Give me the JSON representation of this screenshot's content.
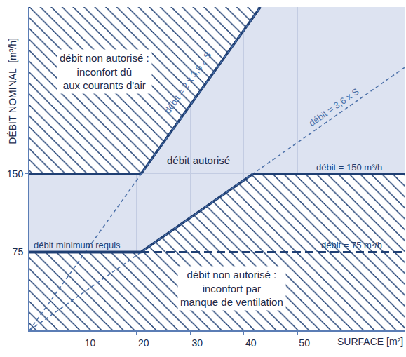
{
  "chart_data": {
    "type": "line",
    "x_label": "SURFACE [m²]",
    "y_label": "DÉBIT NOMINAL  [m³/h]",
    "xlim": [
      0,
      70
    ],
    "ylim": [
      0,
      310
    ],
    "xticks": [
      10,
      20,
      30,
      40,
      50
    ],
    "yticks": [
      75,
      150
    ],
    "grid": true,
    "series": [
      {
        "name": "débit non autorisé :\ninconfort dû\naux courants d'air",
        "type": "hatch_above",
        "color": "#1f3f73",
        "line_style": "solid",
        "x": [
          0,
          20.8,
          43.1
        ],
        "values": [
          150,
          150,
          310
        ]
      },
      {
        "name": "débit non autorisé :\ninconfort par\nmanque de ventilation",
        "type": "hatch_below",
        "color": "#1f3f73",
        "line_style": "solid",
        "x": [
          0,
          20.8,
          41.7,
          70
        ],
        "values": [
          75,
          75,
          150,
          150
        ]
      },
      {
        "name": "débit = 2 x 3,6 x S",
        "type": "line",
        "color": "#4a6fa8",
        "line_style": "dashed",
        "x": [
          0,
          43.1
        ],
        "values": [
          0,
          310
        ]
      },
      {
        "name": "débit = 3,6 x S",
        "type": "line",
        "color": "#4a6fa8",
        "line_style": "dashed",
        "x": [
          0,
          70
        ],
        "values": [
          0,
          252
        ]
      },
      {
        "name": "débit minimum requis",
        "type": "line",
        "color": "#1f3f73",
        "line_style": "solid",
        "x": [
          0,
          20.8
        ],
        "values": [
          75,
          75
        ]
      },
      {
        "name": "débit = 150 m³/h",
        "type": "line",
        "color": "#1f3f73",
        "line_style": "solid",
        "x": [
          41.7,
          70
        ],
        "values": [
          150,
          150
        ]
      },
      {
        "name": "débit = 75 m³/h",
        "type": "line",
        "color": "#1f3f73",
        "line_style": "long_dashed",
        "x": [
          20.8,
          70
        ],
        "values": [
          75,
          75
        ]
      }
    ],
    "annotations": [
      "débit autorisé"
    ]
  }
}
